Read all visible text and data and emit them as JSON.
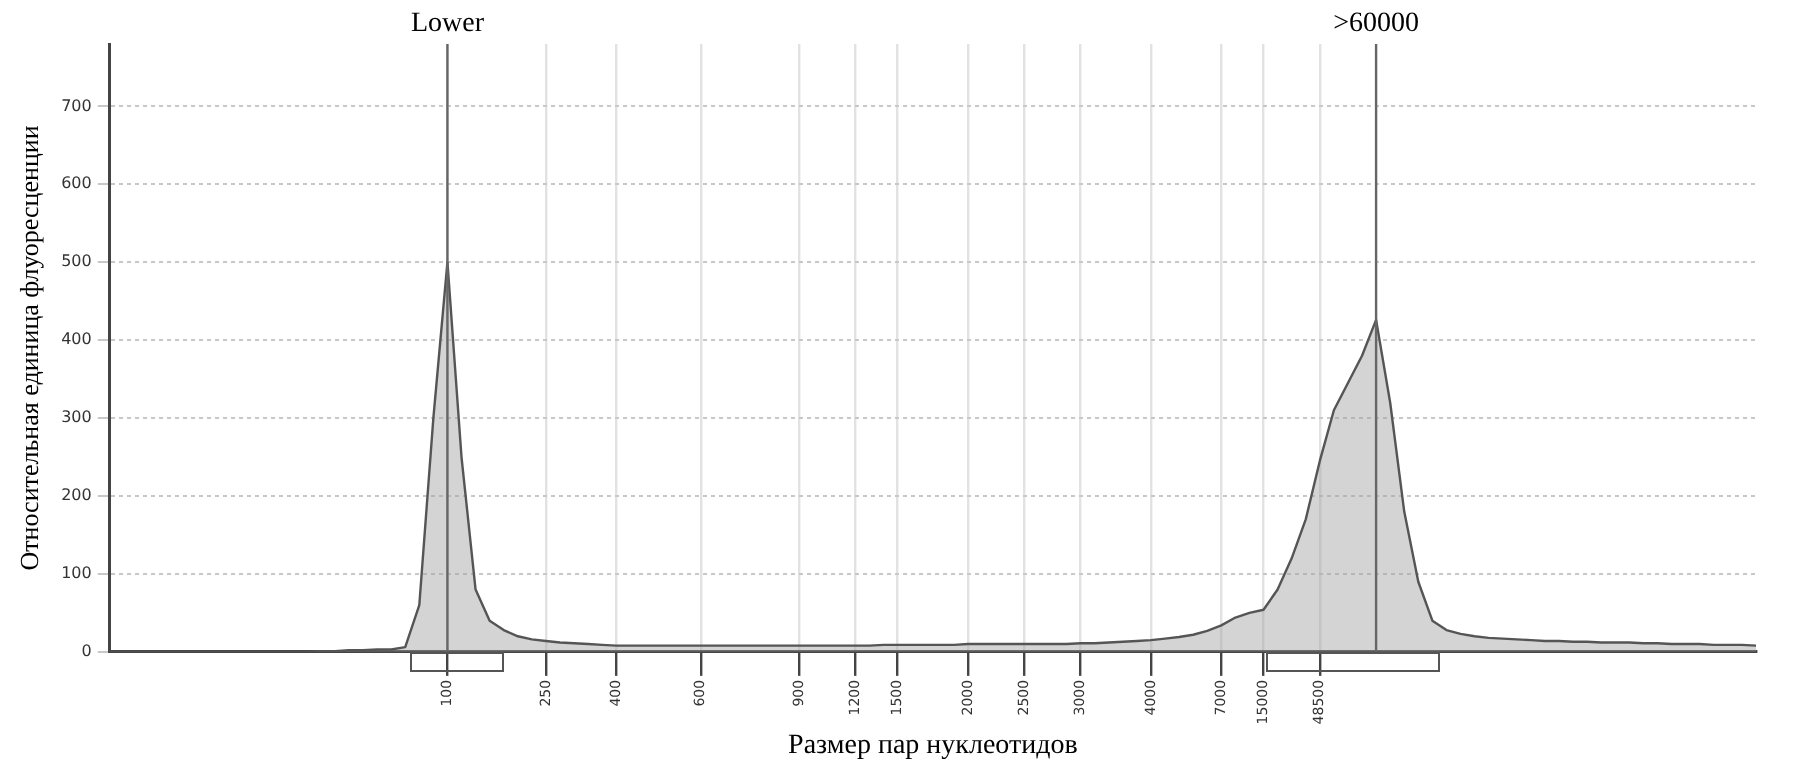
{
  "chart_data": {
    "type": "area",
    "xlabel": "Размер пар нуклеотидов",
    "ylabel": "Относительная единица флуоресценции",
    "categories": [
      null,
      null,
      null,
      null,
      null,
      null,
      null,
      null,
      null,
      null,
      null,
      null,
      null,
      null,
      null,
      null,
      null,
      null,
      null,
      null,
      null,
      null,
      null,
      null,
      "100",
      null,
      null,
      null,
      null,
      null,
      null,
      "250",
      null,
      null,
      null,
      null,
      "400",
      null,
      null,
      null,
      null,
      null,
      "600",
      null,
      null,
      null,
      null,
      null,
      null,
      "900",
      null,
      null,
      null,
      "1200",
      null,
      null,
      "1500",
      null,
      null,
      null,
      null,
      "2000",
      null,
      null,
      null,
      "2500",
      null,
      null,
      null,
      "3000",
      null,
      null,
      null,
      null,
      "4000",
      null,
      null,
      null,
      null,
      "7000",
      null,
      null,
      "15000",
      null,
      null,
      null,
      "48500",
      null,
      null,
      null,
      null,
      null,
      null,
      null,
      null,
      null,
      null,
      null,
      null,
      null,
      null,
      null,
      null,
      null,
      null,
      null,
      null,
      null,
      null,
      null,
      null,
      null,
      null,
      null,
      null,
      null,
      null,
      null
    ],
    "series": [
      {
        "color": "#555555",
        "values": [
          0,
          0,
          0,
          0,
          0,
          0,
          0,
          0,
          0,
          0,
          0,
          0,
          0,
          0,
          0,
          1,
          1,
          2,
          2,
          3,
          3,
          6,
          60,
          300,
          500,
          250,
          80,
          40,
          28,
          20,
          16,
          14,
          12,
          11,
          10,
          9,
          8,
          8,
          8,
          8,
          8,
          8,
          8,
          8,
          8,
          8,
          8,
          8,
          8,
          8,
          8,
          8,
          8,
          8,
          8,
          9,
          9,
          9,
          9,
          9,
          9,
          10,
          10,
          10,
          10,
          10,
          10,
          10,
          10,
          11,
          11,
          12,
          13,
          14,
          15,
          17,
          19,
          22,
          27,
          34,
          44,
          50,
          54,
          80,
          120,
          170,
          245,
          310,
          345,
          380,
          426,
          320,
          180,
          90,
          40,
          28,
          23,
          20,
          18,
          17,
          16,
          15,
          14,
          14,
          13,
          13,
          12,
          12,
          12,
          11,
          11,
          10,
          10,
          10,
          9,
          9,
          9,
          8
        ]
      }
    ],
    "ylim": [
      0,
      780
    ],
    "yticks": [
      0,
      100,
      200,
      300,
      400,
      500,
      600,
      700
    ],
    "grid": true,
    "legend": false,
    "annotations": [
      "Lower",
      ">60000"
    ]
  }
}
